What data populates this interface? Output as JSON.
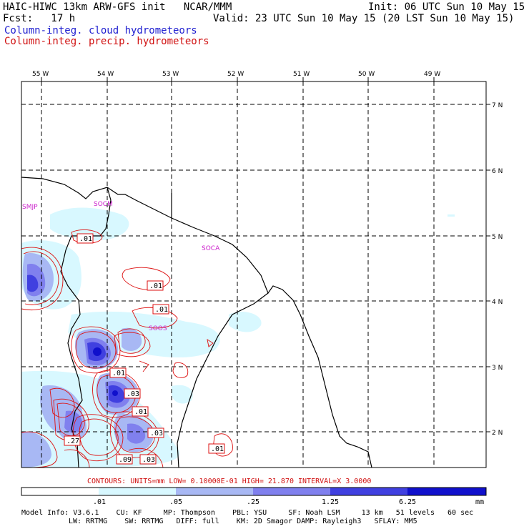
{
  "header": {
    "title_left": "HAIC-HIWC 13km ARW-GFS init   NCAR/MMM",
    "init": "Init: 06 UTC Sun 10 May 15",
    "fcst": "Fcst:   17 h",
    "valid": "Valid: 23 UTC Sun 10 May 15 (20 LST Sun 10 May 15)",
    "field1": "Column-integ. cloud hydrometeors",
    "field2": "Column-integ. precip. hydrometeors"
  },
  "map": {
    "lon_labels": [
      "55 W",
      "54 W",
      "53 W",
      "52 W",
      "51 W",
      "50 W",
      "49 W"
    ],
    "lat_labels": [
      "7 N",
      "6 N",
      "5 N",
      "4 N",
      "3 N",
      "2 N"
    ],
    "stations": [
      "SMJP",
      "SOCM",
      "SOCA",
      "SOOS"
    ],
    "contour_labels": [
      ".01",
      ".01",
      ".01",
      ".01",
      ".03",
      ".01",
      ".03",
      ".27",
      ".01",
      ".09",
      ".03"
    ],
    "colors": {
      "coast": "#000000",
      "grid": "#000000",
      "precip_contour": "#dd1111",
      "cloud_1": "#d8f8ff",
      "cloud_2": "#a8b8f4",
      "cloud_3": "#8080ee",
      "cloud_4": "#4040e0",
      "cloud_5": "#1010cc",
      "station": "#cc22cc"
    }
  },
  "contours_info": "CONTOURS:  UNITS=mm  LOW= 0.10000E-01  HIGH=  21.870     INTERVAL=X  3.0000",
  "colorbar": {
    "ticks": [
      ".01",
      ".05",
      ".25",
      "1.25",
      "6.25"
    ],
    "unit": "mm",
    "colors": [
      "#ffffff",
      "#d8f8ff",
      "#a8b8f4",
      "#8080ee",
      "#4040e0",
      "#1010cc"
    ]
  },
  "footer": {
    "line1": "Model Info: V3.6.1    CU: KF     MP: Thompson    PBL: YSU     SF: Noah LSM     13 km   51 levels   60 sec",
    "line2": "LW: RRTMG    SW: RRTMG   DIFF: full    KM: 2D Smagor DAMP: Rayleigh3   SFLAY: MM5"
  }
}
